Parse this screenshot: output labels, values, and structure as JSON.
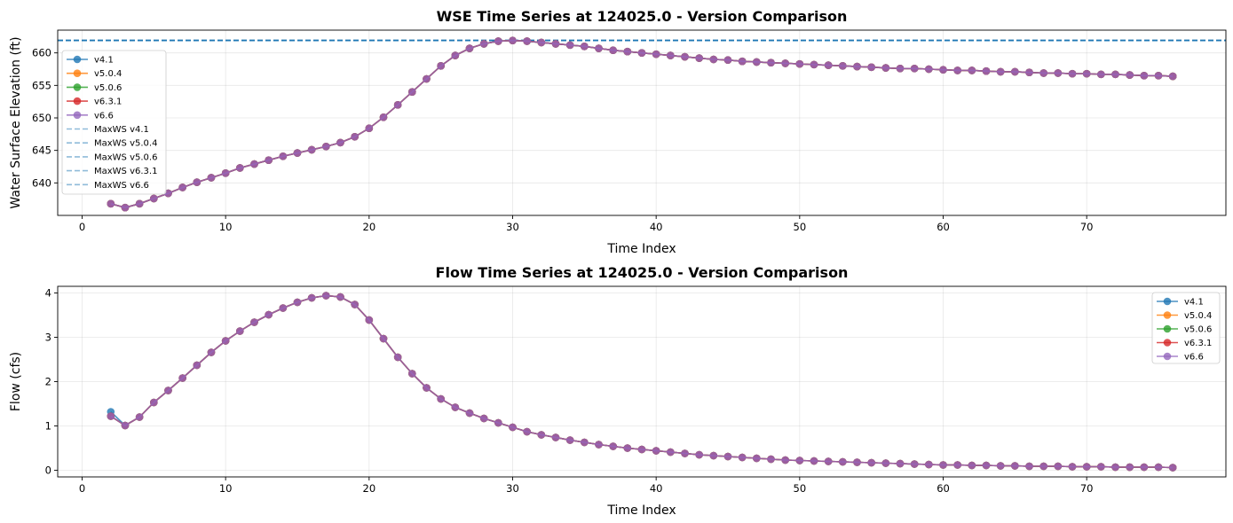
{
  "chart_data": [
    {
      "type": "line",
      "title": "WSE Time Series at 124025.0 - Version Comparison",
      "xlabel": "Time Index",
      "ylabel": "Water Surface Elevation (ft)",
      "xlim": [
        -1.7,
        79.7
      ],
      "ylim": [
        635.0,
        663.5
      ],
      "xticks": [
        0,
        10,
        20,
        30,
        40,
        50,
        60,
        70
      ],
      "yticks": [
        640,
        645,
        650,
        655,
        660
      ],
      "grid": true,
      "legend_position": "center-left",
      "x": [
        2,
        3,
        4,
        5,
        6,
        7,
        8,
        9,
        10,
        11,
        12,
        13,
        14,
        15,
        16,
        17,
        18,
        19,
        20,
        21,
        22,
        23,
        24,
        25,
        26,
        27,
        28,
        29,
        30,
        31,
        32,
        33,
        34,
        35,
        36,
        37,
        38,
        39,
        40,
        41,
        42,
        43,
        44,
        45,
        46,
        47,
        48,
        49,
        50,
        51,
        52,
        53,
        54,
        55,
        56,
        57,
        58,
        59,
        60,
        61,
        62,
        63,
        64,
        65,
        66,
        67,
        68,
        69,
        70,
        71,
        72,
        73,
        74,
        75,
        76
      ],
      "series": [
        {
          "name": "v4.1",
          "color": "#1f77b4",
          "values": [
            636.8,
            636.2,
            636.8,
            637.6,
            638.4,
            639.3,
            640.1,
            640.8,
            641.5,
            642.3,
            642.9,
            643.5,
            644.1,
            644.6,
            645.1,
            645.6,
            646.2,
            647.1,
            648.4,
            650.1,
            652.0,
            654.0,
            656.0,
            658.0,
            659.6,
            660.7,
            661.4,
            661.8,
            661.9,
            661.8,
            661.6,
            661.4,
            661.2,
            661.0,
            660.7,
            660.4,
            660.2,
            660.0,
            659.8,
            659.6,
            659.4,
            659.2,
            659.0,
            658.9,
            658.7,
            658.6,
            658.5,
            658.4,
            658.3,
            658.2,
            658.1,
            658.0,
            657.9,
            657.8,
            657.7,
            657.6,
            657.6,
            657.5,
            657.4,
            657.3,
            657.3,
            657.2,
            657.1,
            657.1,
            657.0,
            656.9,
            656.9,
            656.8,
            656.8,
            656.7,
            656.7,
            656.6,
            656.5,
            656.5,
            656.4
          ]
        },
        {
          "name": "v5.0.4",
          "color": "#ff7f0e",
          "values": [
            636.8,
            636.2,
            636.8,
            637.6,
            638.4,
            639.3,
            640.1,
            640.8,
            641.5,
            642.3,
            642.9,
            643.5,
            644.1,
            644.6,
            645.1,
            645.6,
            646.2,
            647.1,
            648.4,
            650.1,
            652.0,
            654.0,
            656.0,
            658.0,
            659.6,
            660.7,
            661.4,
            661.8,
            661.9,
            661.8,
            661.6,
            661.4,
            661.2,
            661.0,
            660.7,
            660.4,
            660.2,
            660.0,
            659.8,
            659.6,
            659.4,
            659.2,
            659.0,
            658.9,
            658.7,
            658.6,
            658.5,
            658.4,
            658.3,
            658.2,
            658.1,
            658.0,
            657.9,
            657.8,
            657.7,
            657.6,
            657.6,
            657.5,
            657.4,
            657.3,
            657.3,
            657.2,
            657.1,
            657.1,
            657.0,
            656.9,
            656.9,
            656.8,
            656.8,
            656.7,
            656.7,
            656.6,
            656.5,
            656.5,
            656.4
          ]
        },
        {
          "name": "v5.0.6",
          "color": "#2ca02c",
          "values": [
            636.8,
            636.2,
            636.8,
            637.6,
            638.4,
            639.3,
            640.1,
            640.8,
            641.5,
            642.3,
            642.9,
            643.5,
            644.1,
            644.6,
            645.1,
            645.6,
            646.2,
            647.1,
            648.4,
            650.1,
            652.0,
            654.0,
            656.0,
            658.0,
            659.6,
            660.7,
            661.4,
            661.8,
            661.9,
            661.8,
            661.6,
            661.4,
            661.2,
            661.0,
            660.7,
            660.4,
            660.2,
            660.0,
            659.8,
            659.6,
            659.4,
            659.2,
            659.0,
            658.9,
            658.7,
            658.6,
            658.5,
            658.4,
            658.3,
            658.2,
            658.1,
            658.0,
            657.9,
            657.8,
            657.7,
            657.6,
            657.6,
            657.5,
            657.4,
            657.3,
            657.3,
            657.2,
            657.1,
            657.1,
            657.0,
            656.9,
            656.9,
            656.8,
            656.8,
            656.7,
            656.7,
            656.6,
            656.5,
            656.5,
            656.4
          ]
        },
        {
          "name": "v6.3.1",
          "color": "#d62728",
          "values": [
            636.8,
            636.2,
            636.8,
            637.6,
            638.4,
            639.3,
            640.1,
            640.8,
            641.5,
            642.3,
            642.9,
            643.5,
            644.1,
            644.6,
            645.1,
            645.6,
            646.2,
            647.1,
            648.4,
            650.1,
            652.0,
            654.0,
            656.0,
            658.0,
            659.6,
            660.7,
            661.4,
            661.8,
            661.9,
            661.8,
            661.6,
            661.4,
            661.2,
            661.0,
            660.7,
            660.4,
            660.2,
            660.0,
            659.8,
            659.6,
            659.4,
            659.2,
            659.0,
            658.9,
            658.7,
            658.6,
            658.5,
            658.4,
            658.3,
            658.2,
            658.1,
            658.0,
            657.9,
            657.8,
            657.7,
            657.6,
            657.6,
            657.5,
            657.4,
            657.3,
            657.3,
            657.2,
            657.1,
            657.1,
            657.0,
            656.9,
            656.9,
            656.8,
            656.8,
            656.7,
            656.7,
            656.6,
            656.5,
            656.5,
            656.4
          ]
        },
        {
          "name": "v6.6",
          "color": "#9467bd",
          "values": [
            636.8,
            636.2,
            636.8,
            637.6,
            638.4,
            639.3,
            640.1,
            640.8,
            641.5,
            642.3,
            642.9,
            643.5,
            644.1,
            644.6,
            645.1,
            645.6,
            646.2,
            647.1,
            648.4,
            650.1,
            652.0,
            654.0,
            656.0,
            658.0,
            659.6,
            660.7,
            661.4,
            661.8,
            661.9,
            661.8,
            661.6,
            661.4,
            661.2,
            661.0,
            660.7,
            660.4,
            660.2,
            660.0,
            659.8,
            659.6,
            659.4,
            659.2,
            659.0,
            658.9,
            658.7,
            658.6,
            658.5,
            658.4,
            658.3,
            658.2,
            658.1,
            658.0,
            657.9,
            657.8,
            657.7,
            657.6,
            657.6,
            657.5,
            657.4,
            657.3,
            657.3,
            657.2,
            657.1,
            657.1,
            657.0,
            656.9,
            656.9,
            656.8,
            656.8,
            656.7,
            656.7,
            656.6,
            656.5,
            656.5,
            656.4
          ]
        }
      ],
      "hlines": [
        {
          "name": "MaxWS v4.1",
          "value": 661.9
        },
        {
          "name": "MaxWS v5.0.4",
          "value": 661.9
        },
        {
          "name": "MaxWS v5.0.6",
          "value": 661.9
        },
        {
          "name": "MaxWS v6.3.1",
          "value": 661.9
        },
        {
          "name": "MaxWS v6.6",
          "value": 661.9
        }
      ]
    },
    {
      "type": "line",
      "title": "Flow Time Series at 124025.0 - Version Comparison",
      "xlabel": "Time Index",
      "ylabel": "Flow (cfs)",
      "xlim": [
        -1.7,
        79.7
      ],
      "ylim": [
        -0.15,
        4.15
      ],
      "xticks": [
        0,
        10,
        20,
        30,
        40,
        50,
        60,
        70
      ],
      "yticks": [
        0,
        1,
        2,
        3,
        4
      ],
      "grid": true,
      "legend_position": "top-right",
      "x": [
        2,
        3,
        4,
        5,
        6,
        7,
        8,
        9,
        10,
        11,
        12,
        13,
        14,
        15,
        16,
        17,
        18,
        19,
        20,
        21,
        22,
        23,
        24,
        25,
        26,
        27,
        28,
        29,
        30,
        31,
        32,
        33,
        34,
        35,
        36,
        37,
        38,
        39,
        40,
        41,
        42,
        43,
        44,
        45,
        46,
        47,
        48,
        49,
        50,
        51,
        52,
        53,
        54,
        55,
        56,
        57,
        58,
        59,
        60,
        61,
        62,
        63,
        64,
        65,
        66,
        67,
        68,
        69,
        70,
        71,
        72,
        73,
        74,
        75,
        76
      ],
      "series": [
        {
          "name": "v4.1",
          "color": "#1f77b4",
          "values": [
            1.32,
            1.01,
            1.2,
            1.53,
            1.8,
            2.08,
            2.37,
            2.66,
            2.92,
            3.14,
            3.34,
            3.51,
            3.66,
            3.79,
            3.89,
            3.94,
            3.91,
            3.74,
            3.39,
            2.97,
            2.55,
            2.18,
            1.86,
            1.61,
            1.42,
            1.29,
            1.17,
            1.07,
            0.97,
            0.87,
            0.8,
            0.74,
            0.68,
            0.63,
            0.58,
            0.54,
            0.5,
            0.47,
            0.44,
            0.41,
            0.38,
            0.35,
            0.33,
            0.31,
            0.29,
            0.27,
            0.25,
            0.23,
            0.22,
            0.21,
            0.2,
            0.19,
            0.18,
            0.17,
            0.16,
            0.15,
            0.14,
            0.13,
            0.12,
            0.12,
            0.11,
            0.11,
            0.1,
            0.1,
            0.09,
            0.09,
            0.09,
            0.08,
            0.08,
            0.08,
            0.07,
            0.07,
            0.07,
            0.07,
            0.06
          ]
        },
        {
          "name": "v5.0.4",
          "color": "#ff7f0e",
          "values": [
            1.22,
            1.01,
            1.2,
            1.53,
            1.8,
            2.08,
            2.37,
            2.66,
            2.92,
            3.14,
            3.34,
            3.51,
            3.66,
            3.79,
            3.89,
            3.94,
            3.91,
            3.74,
            3.39,
            2.97,
            2.55,
            2.18,
            1.86,
            1.61,
            1.42,
            1.29,
            1.17,
            1.07,
            0.97,
            0.87,
            0.8,
            0.74,
            0.68,
            0.63,
            0.58,
            0.54,
            0.5,
            0.47,
            0.44,
            0.41,
            0.38,
            0.35,
            0.33,
            0.31,
            0.29,
            0.27,
            0.25,
            0.23,
            0.22,
            0.21,
            0.2,
            0.19,
            0.18,
            0.17,
            0.16,
            0.15,
            0.14,
            0.13,
            0.12,
            0.12,
            0.11,
            0.11,
            0.1,
            0.1,
            0.09,
            0.09,
            0.09,
            0.08,
            0.08,
            0.08,
            0.07,
            0.07,
            0.07,
            0.07,
            0.06
          ]
        },
        {
          "name": "v5.0.6",
          "color": "#2ca02c",
          "values": [
            1.22,
            1.01,
            1.2,
            1.53,
            1.8,
            2.08,
            2.37,
            2.66,
            2.92,
            3.14,
            3.34,
            3.51,
            3.66,
            3.79,
            3.89,
            3.94,
            3.91,
            3.74,
            3.39,
            2.97,
            2.55,
            2.18,
            1.86,
            1.61,
            1.42,
            1.29,
            1.17,
            1.07,
            0.97,
            0.87,
            0.8,
            0.74,
            0.68,
            0.63,
            0.58,
            0.54,
            0.5,
            0.47,
            0.44,
            0.41,
            0.38,
            0.35,
            0.33,
            0.31,
            0.29,
            0.27,
            0.25,
            0.23,
            0.22,
            0.21,
            0.2,
            0.19,
            0.18,
            0.17,
            0.16,
            0.15,
            0.14,
            0.13,
            0.12,
            0.12,
            0.11,
            0.11,
            0.1,
            0.1,
            0.09,
            0.09,
            0.09,
            0.08,
            0.08,
            0.08,
            0.07,
            0.07,
            0.07,
            0.07,
            0.06
          ]
        },
        {
          "name": "v6.3.1",
          "color": "#d62728",
          "values": [
            1.22,
            1.01,
            1.2,
            1.53,
            1.8,
            2.08,
            2.37,
            2.66,
            2.92,
            3.14,
            3.34,
            3.51,
            3.66,
            3.79,
            3.89,
            3.94,
            3.91,
            3.74,
            3.39,
            2.97,
            2.55,
            2.18,
            1.86,
            1.61,
            1.42,
            1.29,
            1.17,
            1.07,
            0.97,
            0.87,
            0.8,
            0.74,
            0.68,
            0.63,
            0.58,
            0.54,
            0.5,
            0.47,
            0.44,
            0.41,
            0.38,
            0.35,
            0.33,
            0.31,
            0.29,
            0.27,
            0.25,
            0.23,
            0.22,
            0.21,
            0.2,
            0.19,
            0.18,
            0.17,
            0.16,
            0.15,
            0.14,
            0.13,
            0.12,
            0.12,
            0.11,
            0.11,
            0.1,
            0.1,
            0.09,
            0.09,
            0.09,
            0.08,
            0.08,
            0.08,
            0.07,
            0.07,
            0.07,
            0.07,
            0.06
          ]
        },
        {
          "name": "v6.6",
          "color": "#9467bd",
          "values": [
            1.22,
            1.01,
            1.2,
            1.53,
            1.8,
            2.08,
            2.37,
            2.66,
            2.92,
            3.14,
            3.34,
            3.51,
            3.66,
            3.79,
            3.89,
            3.94,
            3.91,
            3.74,
            3.39,
            2.97,
            2.55,
            2.18,
            1.86,
            1.61,
            1.42,
            1.29,
            1.17,
            1.07,
            0.97,
            0.87,
            0.8,
            0.74,
            0.68,
            0.63,
            0.58,
            0.54,
            0.5,
            0.47,
            0.44,
            0.41,
            0.38,
            0.35,
            0.33,
            0.31,
            0.29,
            0.27,
            0.25,
            0.23,
            0.22,
            0.21,
            0.2,
            0.19,
            0.18,
            0.17,
            0.16,
            0.15,
            0.14,
            0.13,
            0.12,
            0.12,
            0.11,
            0.11,
            0.1,
            0.1,
            0.09,
            0.09,
            0.09,
            0.08,
            0.08,
            0.08,
            0.07,
            0.07,
            0.07,
            0.07,
            0.06
          ]
        }
      ]
    }
  ]
}
